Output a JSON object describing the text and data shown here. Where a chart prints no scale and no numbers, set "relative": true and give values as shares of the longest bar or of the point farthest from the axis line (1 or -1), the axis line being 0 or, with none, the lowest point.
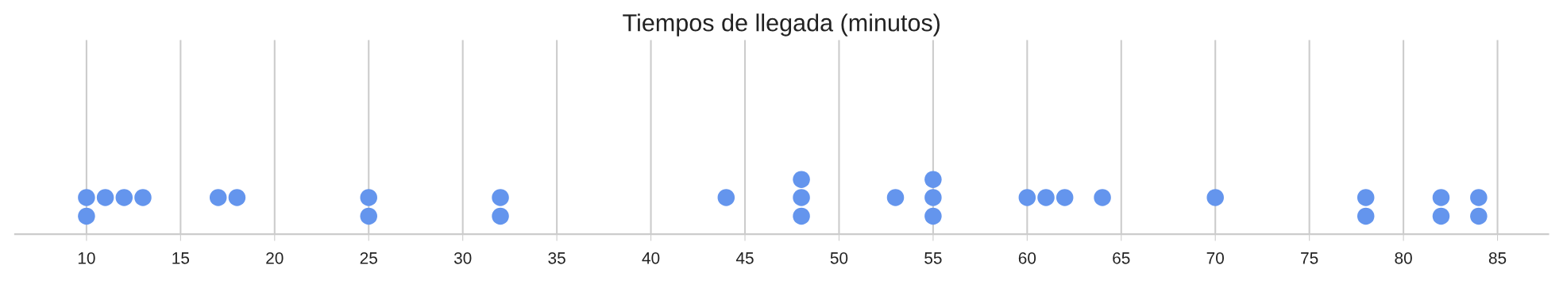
{
  "chart_data": {
    "type": "scatter",
    "title": "Tiempos de llegada (minutos)",
    "relative": true,
    "x": [
      10,
      10,
      11,
      12,
      13,
      17,
      18,
      25,
      25,
      32,
      32,
      44,
      48,
      48,
      48,
      53,
      55,
      55,
      55,
      60,
      61,
      62,
      64,
      70,
      78,
      78,
      82,
      82,
      84,
      84
    ],
    "series": [
      {
        "color": "#6495ed",
        "values": [
          0.33,
          0.67,
          0.67,
          0.67,
          0.67,
          0.67,
          0.67,
          0.33,
          0.67,
          0.33,
          0.67,
          0.67,
          0.33,
          0.67,
          1,
          0.67,
          0.33,
          0.67,
          1,
          0.67,
          0.67,
          0.67,
          0.67,
          0.67,
          0.33,
          0.67,
          0.33,
          0.67,
          0.33,
          0.67
        ]
      }
    ],
    "xlim": [
      6.2,
      87.7
    ],
    "xticks": [
      10,
      15,
      20,
      25,
      30,
      35,
      40,
      45,
      50,
      55,
      60,
      65,
      70,
      75,
      80,
      85
    ],
    "grid": "x",
    "marker": "circle",
    "tick_labels": "x"
  }
}
